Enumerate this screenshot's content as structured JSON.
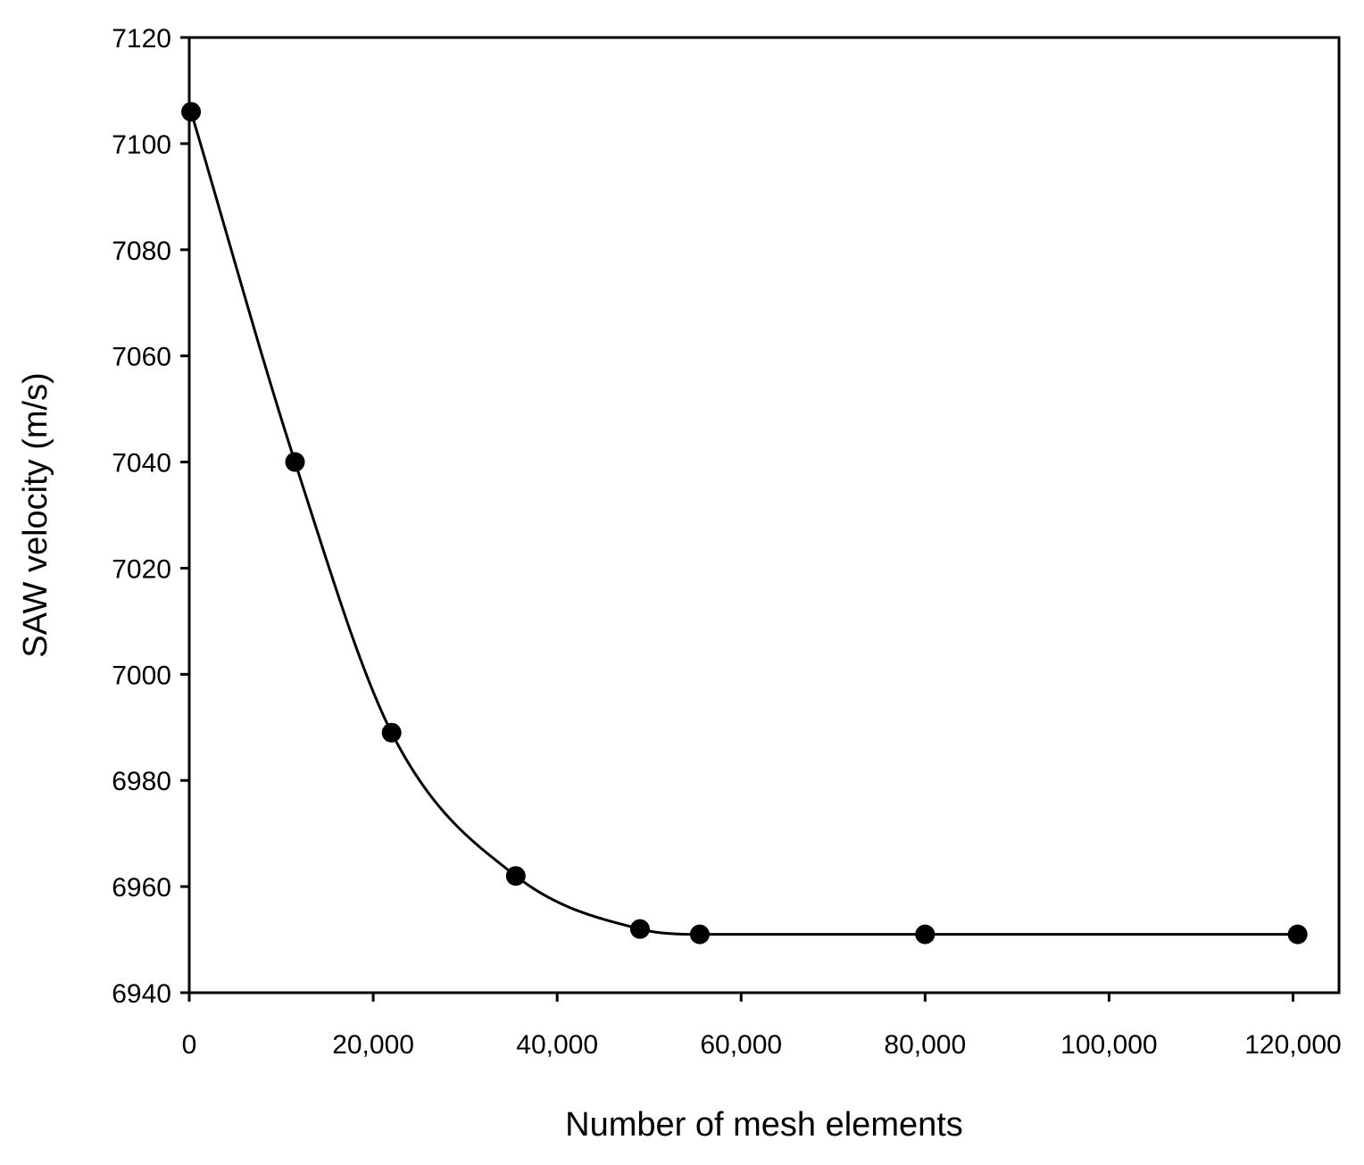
{
  "chart_data": {
    "type": "scatter",
    "title": "",
    "xlabel": "Number of mesh elements",
    "ylabel": "SAW velocity (m/s)",
    "xlim": [
      0,
      125000
    ],
    "ylim": [
      6940,
      7120
    ],
    "xticks": [
      0,
      20000,
      40000,
      60000,
      80000,
      100000,
      120000
    ],
    "xtick_labels": [
      "0",
      "20,000",
      "40,000",
      "60,000",
      "80,000",
      "100,000",
      "120,000"
    ],
    "yticks": [
      6940,
      6960,
      6980,
      7000,
      7020,
      7040,
      7060,
      7080,
      7100,
      7120
    ],
    "ytick_labels": [
      "6940",
      "6960",
      "6980",
      "7000",
      "7020",
      "7040",
      "7060",
      "7080",
      "7100",
      "7120"
    ],
    "grid": false,
    "legend": "none",
    "smooth_line": true,
    "series": [
      {
        "points": [
          [
            200,
            7106
          ],
          [
            11500,
            7040
          ],
          [
            22000,
            6989
          ],
          [
            35500,
            6962
          ],
          [
            49000,
            6952
          ],
          [
            55500,
            6951
          ],
          [
            80000,
            6951
          ],
          [
            120500,
            6951
          ]
        ]
      }
    ],
    "colors": {
      "marker": "#000000",
      "line": "#000000",
      "axis": "#000000"
    }
  }
}
